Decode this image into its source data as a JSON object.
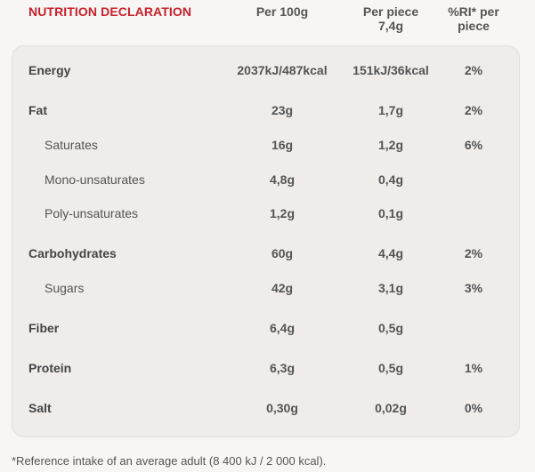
{
  "header": {
    "title": "NUTRITION DECLARATION",
    "col_per100g": "Per 100g",
    "col_perpiece_line1": "Per piece",
    "col_perpiece_line2": "7,4g",
    "col_ri_line1": "%RI* per",
    "col_ri_line2": "piece"
  },
  "rows": [
    {
      "name": "Energy",
      "per100g": "2037kJ/487kcal",
      "perpiece": "151kJ/36kcal",
      "ri": "2%"
    },
    {
      "name": "Fat",
      "per100g": "23g",
      "perpiece": "1,7g",
      "ri": "2%"
    },
    {
      "name": "Saturates",
      "per100g": "16g",
      "perpiece": "1,2g",
      "ri": "6%"
    },
    {
      "name": "Mono-unsaturates",
      "per100g": "4,8g",
      "perpiece": "0,4g",
      "ri": ""
    },
    {
      "name": "Poly-unsaturates",
      "per100g": "1,2g",
      "perpiece": "0,1g",
      "ri": ""
    },
    {
      "name": "Carbohydrates",
      "per100g": "60g",
      "perpiece": "4,4g",
      "ri": "2%"
    },
    {
      "name": "Sugars",
      "per100g": "42g",
      "perpiece": "3,1g",
      "ri": "3%"
    },
    {
      "name": "Fiber",
      "per100g": "6,4g",
      "perpiece": "0,5g",
      "ri": ""
    },
    {
      "name": "Protein",
      "per100g": "6,3g",
      "perpiece": "0,5g",
      "ri": "1%"
    },
    {
      "name": "Salt",
      "per100g": "0,30g",
      "perpiece": "0,02g",
      "ri": "0%"
    }
  ],
  "footnote": "*Reference intake of an average adult (8 400 kJ / 2 000 kcal)."
}
